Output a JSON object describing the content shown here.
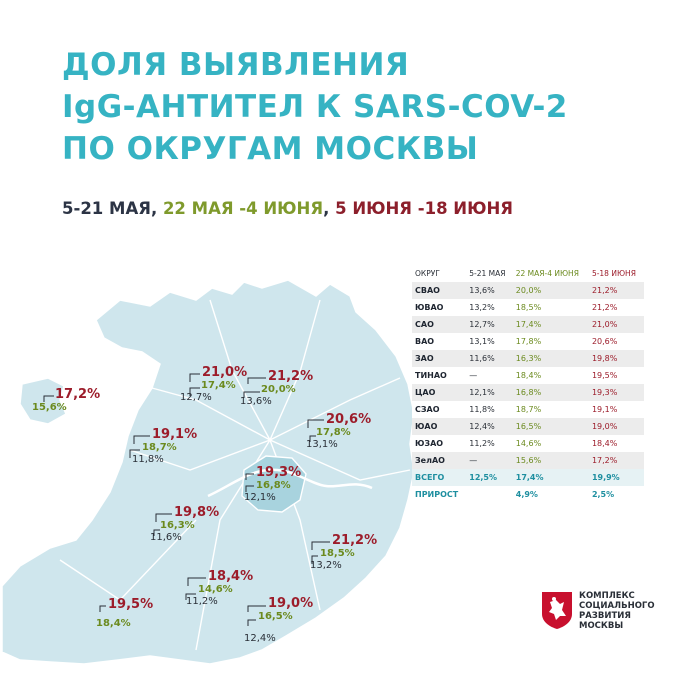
{
  "title": [
    "ДОЛЯ ВЫЯВЛЕНИЯ",
    "IgG-АНТИТЕЛ К SARS-COV-2",
    "ПО ОКРУГАМ МОСКВЫ"
  ],
  "periods": {
    "p1": "5-21 МАЯ",
    "sep1": ", ",
    "p2": "22 МАЯ -4 ИЮНЯ",
    "sep2": ", ",
    "p3": "5 ИЮНЯ -18 ИЮНЯ"
  },
  "colors": {
    "title": "#36b3c3",
    "p1": "#2c3445",
    "p2": "#7f9a2c",
    "p3": "#8c1f2b",
    "map": "#cfe6ed"
  },
  "map_labels": [
    {
      "district": "ЗелАО",
      "v3": "17,2%",
      "v2": "15,6%",
      "v1": ""
    },
    {
      "district": "САО",
      "v3": "21,0%",
      "v2": "17,4%",
      "v1": "12,7%"
    },
    {
      "district": "СВАО",
      "v3": "21,2%",
      "v2": "20,0%",
      "v1": "13,6%"
    },
    {
      "district": "СЗАО",
      "v3": "19,1%",
      "v2": "18,7%",
      "v1": "11,8%"
    },
    {
      "district": "ВАО",
      "v3": "20,6%",
      "v2": "17,8%",
      "v1": "13,1%"
    },
    {
      "district": "ЦАО",
      "v3": "19,3%",
      "v2": "16,8%",
      "v1": "12,1%"
    },
    {
      "district": "ЗАО",
      "v3": "19,8%",
      "v2": "16,3%",
      "v1": "11,6%"
    },
    {
      "district": "ЮВАО",
      "v3": "21,2%",
      "v2": "18,5%",
      "v1": "13,2%"
    },
    {
      "district": "ЮЗАО",
      "v3": "18,4%",
      "v2": "14,6%",
      "v1": "11,2%"
    },
    {
      "district": "ТИНАО",
      "v3": "19,5%",
      "v2": "18,4%",
      "v1": ""
    },
    {
      "district": "ЮАО",
      "v3": "19,0%",
      "v2": "16,5%",
      "v1": "12,4%"
    }
  ],
  "table": {
    "headers": [
      "ОКРУГ",
      "5-21 МАЯ",
      "22 МАЯ-4 ИЮНЯ",
      "5-18 ИЮНЯ"
    ],
    "rows": [
      [
        "СВАО",
        "13,6%",
        "20,0%",
        "21,2%"
      ],
      [
        "ЮВАО",
        "13,2%",
        "18,5%",
        "21,2%"
      ],
      [
        "САО",
        "12,7%",
        "17,4%",
        "21,0%"
      ],
      [
        "ВАО",
        "13,1%",
        "17,8%",
        "20,6%"
      ],
      [
        "ЗАО",
        "11,6%",
        "16,3%",
        "19,8%"
      ],
      [
        "ТИНАО",
        "—",
        "18,4%",
        "19,5%"
      ],
      [
        "ЦАО",
        "12,1%",
        "16,8%",
        "19,3%"
      ],
      [
        "СЗАО",
        "11,8%",
        "18,7%",
        "19,1%"
      ],
      [
        "ЮАО",
        "12,4%",
        "16,5%",
        "19,0%"
      ],
      [
        "ЮЗАО",
        "11,2%",
        "14,6%",
        "18,4%"
      ],
      [
        "ЗелАО",
        "—",
        "15,6%",
        "17,2%"
      ]
    ],
    "total": [
      "ВСЕГО",
      "12,5%",
      "17,4%",
      "19,9%"
    ],
    "growth": [
      "ПРИРОСТ",
      "",
      "4,9%",
      "2,5%"
    ]
  },
  "logo": {
    "lines": [
      "КОМПЛЕКС",
      "СОЦИАЛЬНОГО",
      "РАЗВИТИЯ",
      "МОСКВЫ"
    ],
    "icon": "moscow-coat-of-arms-icon"
  }
}
